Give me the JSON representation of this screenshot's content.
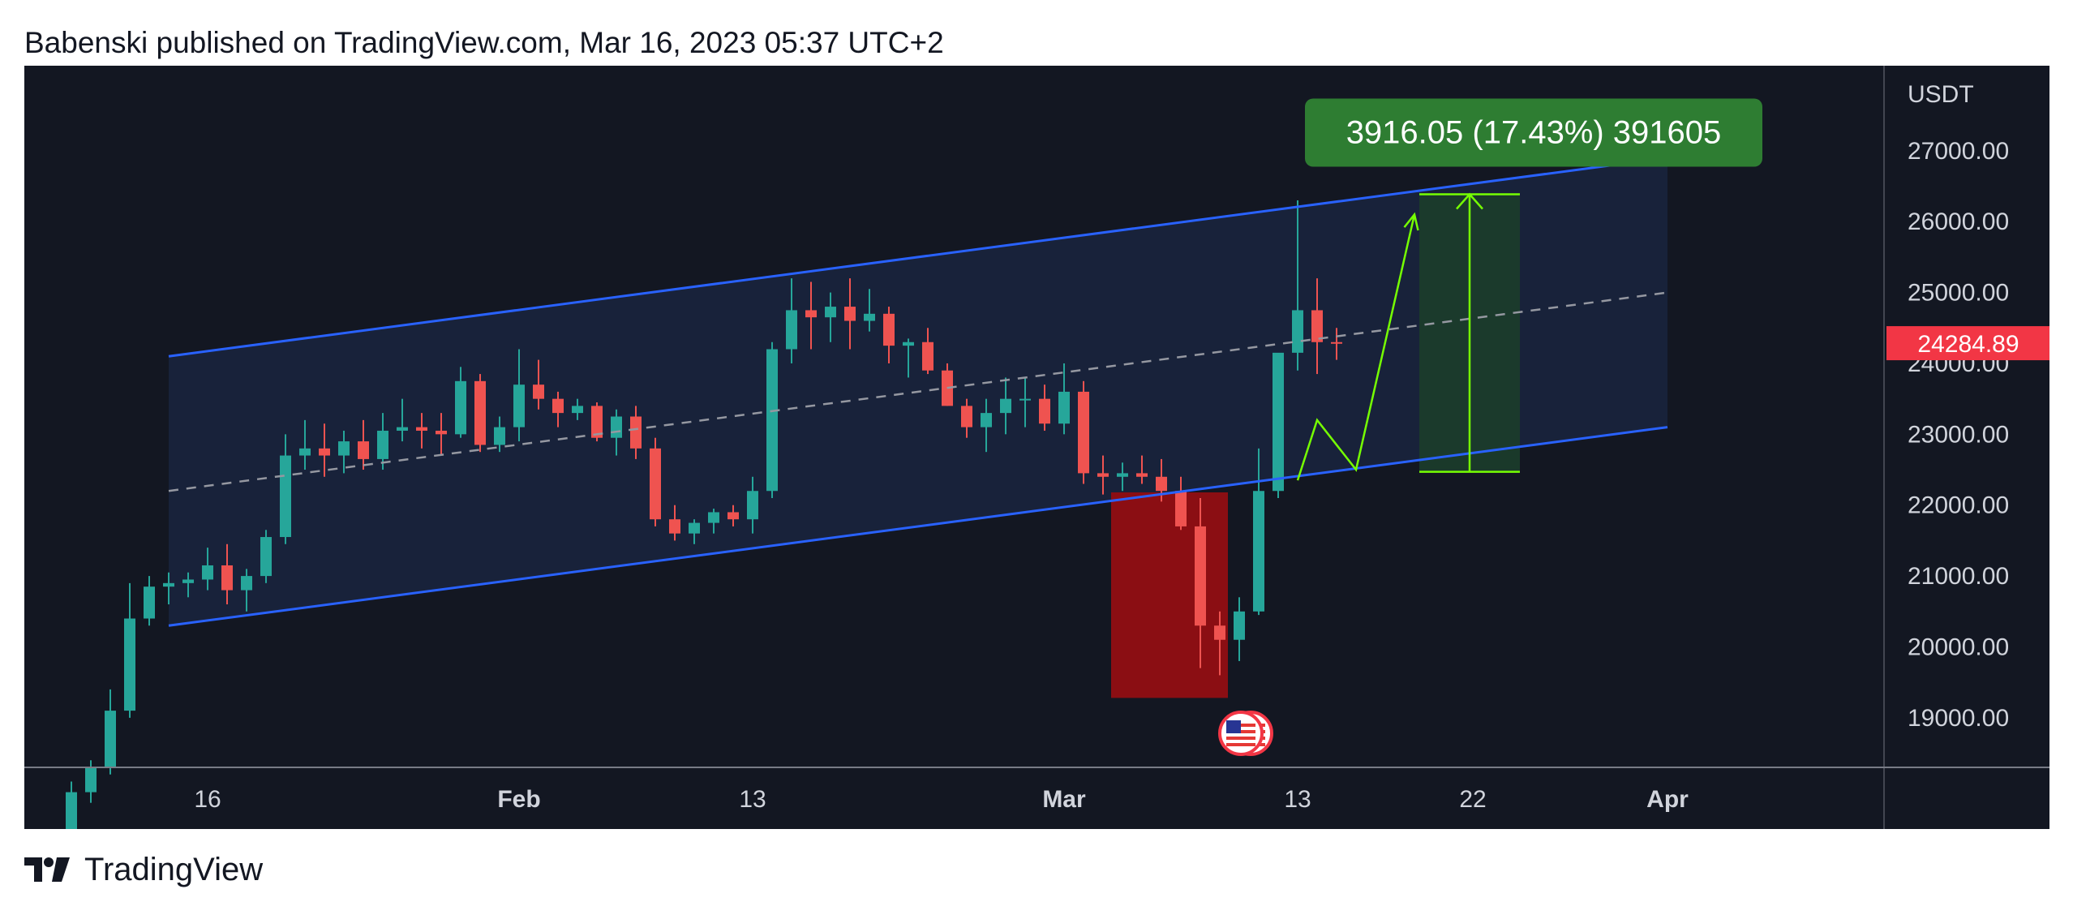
{
  "header": {
    "attribution": "Babenski published on TradingView.com, Mar 16, 2023 05:37 UTC+2"
  },
  "footer": {
    "brand": "TradingView"
  },
  "colors": {
    "background": "#131722",
    "up_candle": "#26a69a",
    "down_candle": "#ef5350",
    "channel_line": "#2962ff",
    "midline": "#9598a1",
    "target_box": "#2e7d32",
    "target_line": "#76ff03",
    "demand_zone": "#8b0e13",
    "price_tag": "#f23645"
  },
  "chart_data": {
    "type": "candlestick",
    "symbol_quote": "USDT",
    "x": [
      "Jan 9",
      "Jan 10",
      "Jan 11",
      "Jan 12",
      "Jan 13",
      "Jan 14",
      "Jan 15",
      "Jan 16",
      "Jan 17",
      "Jan 18",
      "Jan 19",
      "Jan 20",
      "Jan 21",
      "Jan 22",
      "Jan 23",
      "Jan 24",
      "Jan 25",
      "Jan 26",
      "Jan 27",
      "Jan 28",
      "Jan 29",
      "Jan 30",
      "Jan 31",
      "Feb 1",
      "Feb 2",
      "Feb 3",
      "Feb 4",
      "Feb 5",
      "Feb 6",
      "Feb 7",
      "Feb 8",
      "Feb 9",
      "Feb 10",
      "Feb 11",
      "Feb 12",
      "Feb 13",
      "Feb 14",
      "Feb 15",
      "Feb 16",
      "Feb 17",
      "Feb 18",
      "Feb 19",
      "Feb 20",
      "Feb 21",
      "Feb 22",
      "Feb 23",
      "Feb 24",
      "Feb 25",
      "Feb 26",
      "Feb 27",
      "Feb 28",
      "Mar 1",
      "Mar 2",
      "Mar 3",
      "Mar 4",
      "Mar 5",
      "Mar 6",
      "Mar 7",
      "Mar 8",
      "Mar 9",
      "Mar 10",
      "Mar 11",
      "Mar 12",
      "Mar 13",
      "Mar 14",
      "Mar 15"
    ],
    "series": [
      {
        "open": [
          17200,
          17950,
          18300,
          19100,
          20400,
          20850,
          20900,
          20950,
          21150,
          20800,
          21000,
          21550,
          22700,
          22800,
          22700,
          22900,
          22650,
          23050,
          23100,
          23050,
          23000,
          23750,
          22850,
          23100,
          23700,
          23500,
          23300,
          23400,
          22950,
          23250,
          22800,
          21800,
          21600,
          21750,
          21900,
          21800,
          22200,
          24200,
          24750,
          24650,
          24800,
          24600,
          24700,
          24250,
          24300,
          23900,
          23400,
          23100,
          23300,
          23500,
          23500,
          23150,
          23600,
          22450,
          22400,
          22450,
          22400,
          22200,
          21700,
          20300,
          20100,
          20500,
          22200,
          24150,
          24750,
          24300
        ],
        "high": [
          18100,
          18400,
          19400,
          20900,
          21000,
          21050,
          21050,
          21400,
          21450,
          21100,
          21650,
          23000,
          23200,
          23150,
          23050,
          23200,
          23300,
          23500,
          23300,
          23300,
          23950,
          23850,
          23250,
          24200,
          24050,
          23600,
          23500,
          23450,
          23350,
          23400,
          22950,
          22000,
          21800,
          21950,
          22000,
          22400,
          24300,
          25200,
          25150,
          25000,
          25200,
          25050,
          24800,
          24350,
          24500,
          24000,
          23500,
          23500,
          23800,
          23800,
          23700,
          24000,
          23750,
          22700,
          22600,
          22700,
          22650,
          22400,
          22100,
          20500,
          20700,
          22800,
          24100,
          26300,
          25200,
          24500
        ],
        "low": [
          17150,
          17800,
          18200,
          19000,
          20300,
          20600,
          20700,
          20800,
          20600,
          20500,
          20900,
          21450,
          22500,
          22400,
          22450,
          22500,
          22500,
          22900,
          22800,
          22700,
          22950,
          22750,
          22750,
          22900,
          23350,
          23100,
          23200,
          22900,
          22700,
          22650,
          21700,
          21500,
          21450,
          21600,
          21700,
          21600,
          22100,
          24000,
          24200,
          24300,
          24200,
          24450,
          24000,
          23800,
          23850,
          23400,
          22950,
          22750,
          23000,
          23100,
          23050,
          23000,
          22300,
          22150,
          22200,
          22300,
          22050,
          21650,
          19700,
          19600,
          19800,
          20450,
          22100,
          23900,
          23850,
          24050
        ],
        "close": [
          17950,
          18300,
          19100,
          20400,
          20850,
          20900,
          20950,
          21150,
          20800,
          21000,
          21550,
          22700,
          22800,
          22700,
          22900,
          22650,
          23050,
          23100,
          23050,
          23000,
          23750,
          22850,
          23100,
          23700,
          23500,
          23300,
          23400,
          22950,
          23250,
          22800,
          21800,
          21600,
          21750,
          21900,
          21800,
          22200,
          24200,
          24750,
          24650,
          24800,
          24600,
          24700,
          24250,
          24300,
          23900,
          23400,
          23100,
          23300,
          23500,
          23500,
          23150,
          23600,
          22450,
          22400,
          22450,
          22400,
          22200,
          21700,
          20300,
          20100,
          20500,
          22200,
          24150,
          24750,
          24300,
          24284.89
        ]
      }
    ],
    "yticks": [
      "27000.00",
      "26000.00",
      "25000.00",
      "24000.00",
      "23000.00",
      "22000.00",
      "21000.00",
      "20000.00",
      "19000.00"
    ],
    "xticks": [
      {
        "label": "16",
        "bold": false
      },
      {
        "label": "Feb",
        "bold": true
      },
      {
        "label": "13",
        "bold": false
      },
      {
        "label": "Mar",
        "bold": true
      },
      {
        "label": "13",
        "bold": false
      },
      {
        "label": "22",
        "bold": false
      },
      {
        "label": "Apr",
        "bold": true
      }
    ],
    "ylim": [
      18300,
      28200
    ],
    "last_price": "24284.89",
    "channel": {
      "upper": [
        {
          "x": "Jan 14",
          "y": 24100
        },
        {
          "x": "Apr 1",
          "y": 26900
        }
      ],
      "lower": [
        {
          "x": "Jan 14",
          "y": 20300
        },
        {
          "x": "Apr 1",
          "y": 23100
        }
      ],
      "mid": [
        {
          "x": "Jan 14",
          "y": 22200
        },
        {
          "x": "Apr 1",
          "y": 25000
        }
      ]
    },
    "target_measure": {
      "label": "3916.05 (17.43%) 391605",
      "from": 22470,
      "to": 26386
    },
    "demand_zone": {
      "from": 19280,
      "to": 22180
    },
    "projection_path": [
      {
        "x": "Mar 13",
        "y": 22350
      },
      {
        "x": "Mar 14",
        "y": 23200
      },
      {
        "x": "Mar 16",
        "y": 22500
      },
      {
        "x": "Mar 19",
        "y": 26100
      }
    ]
  }
}
